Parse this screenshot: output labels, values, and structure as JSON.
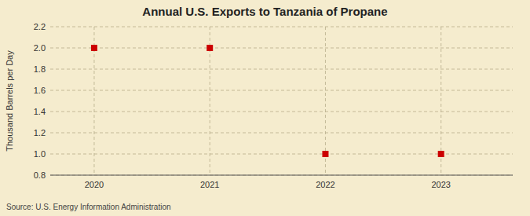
{
  "chart_data": {
    "type": "scatter",
    "title": "Annual U.S. Exports to Tanzania of Propane",
    "ylabel": "Thousand Barrels per Day",
    "source": "Source: U.S. Energy Information Administration",
    "x": [
      2020,
      2021,
      2022,
      2023
    ],
    "y": [
      2.0,
      2.0,
      1.0,
      1.0
    ],
    "xlim": [
      2019.62,
      2023.62
    ],
    "ylim": [
      0.8,
      2.2
    ],
    "xticks": [
      2020,
      2021,
      2022,
      2023
    ],
    "yticks": [
      0.8,
      {
        "value": 1.0,
        "label": "1.0"
      },
      1.2,
      1.4,
      1.6,
      1.8,
      {
        "value": 2.0,
        "label": "2.0"
      },
      2.2
    ],
    "color": "#CC0000",
    "marker": "square",
    "grid": true
  }
}
